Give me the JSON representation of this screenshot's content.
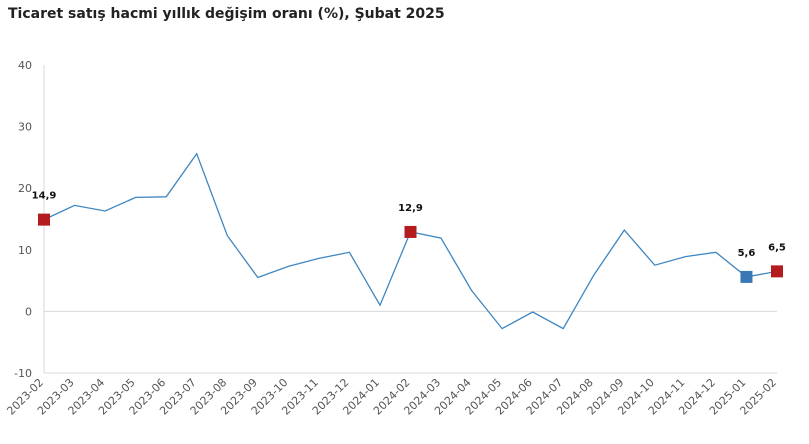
{
  "chart_data": {
    "type": "line",
    "title": "Ticaret satış hacmi yıllık değişim oranı (%), Şubat 2025",
    "xlabel": "",
    "ylabel": "",
    "ylim": [
      -10,
      40
    ],
    "yticks": [
      -10,
      0,
      10,
      20,
      30,
      40
    ],
    "grid": false,
    "categories": [
      "2023-02",
      "2023-03",
      "2023-04",
      "2023-05",
      "2023-06",
      "2023-07",
      "2023-08",
      "2023-09",
      "2023-10",
      "2023-11",
      "2023-12",
      "2024-01",
      "2024-02",
      "2024-03",
      "2024-04",
      "2024-05",
      "2024-06",
      "2024-07",
      "2024-08",
      "2024-09",
      "2024-10",
      "2024-11",
      "2024-12",
      "2025-01",
      "2025-02"
    ],
    "series": [
      {
        "values": [
          14.9,
          17.2,
          16.3,
          18.5,
          18.6,
          25.6,
          12.3,
          5.5,
          7.3,
          8.6,
          9.6,
          1.0,
          12.9,
          11.9,
          3.4,
          -2.8,
          -0.1,
          -2.8,
          5.9,
          13.2,
          7.5,
          8.9,
          9.6,
          5.6,
          6.5
        ],
        "color": "#3e86c1"
      }
    ],
    "highlighted_points": [
      {
        "index": 0,
        "label": "14,9",
        "color": "#b31b1f"
      },
      {
        "index": 12,
        "label": "12,9",
        "color": "#b31b1f"
      },
      {
        "index": 23,
        "label": "5,6",
        "color": "#3a78b5"
      },
      {
        "index": 24,
        "label": "6,5",
        "color": "#b31b1f"
      }
    ]
  }
}
